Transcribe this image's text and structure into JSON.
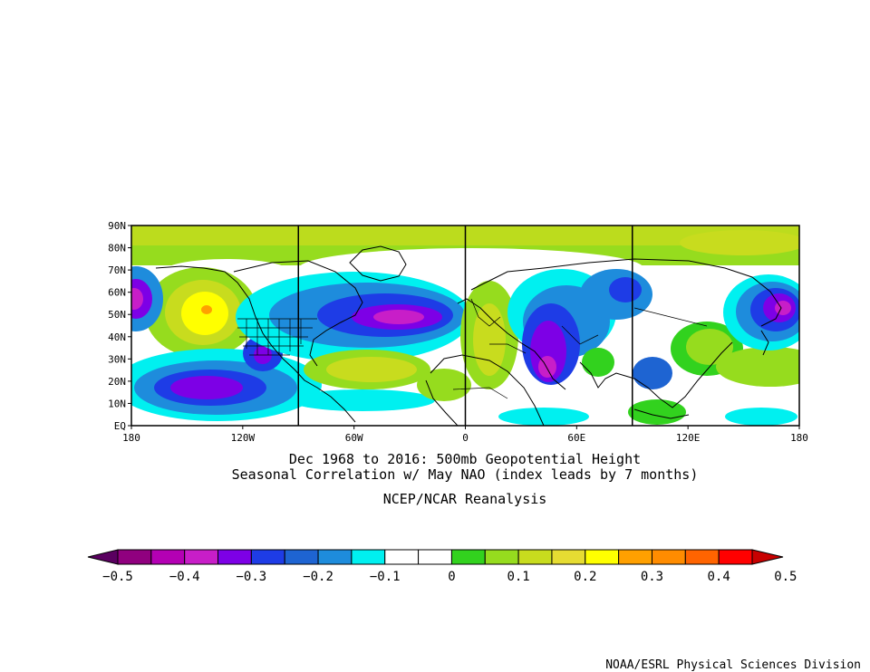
{
  "map": {
    "title_line1": "Dec 1968 to 2016: 500mb Geopotential Height",
    "title_line2": "Seasonal Correlation w/ May NAO (index leads by 7 months)",
    "source": "NCEP/NCAR Reanalysis",
    "credit": "NOAA/ESRL Physical Sciences Division",
    "lat_labels": [
      "90N",
      "80N",
      "70N",
      "60N",
      "50N",
      "40N",
      "30N",
      "20N",
      "10N",
      "EQ"
    ],
    "lon_labels": [
      {
        "label": "180",
        "lon": -180
      },
      {
        "label": "120W",
        "lon": -120
      },
      {
        "label": "60W",
        "lon": -60
      },
      {
        "label": "0",
        "lon": 0
      },
      {
        "label": "60E",
        "lon": 60
      },
      {
        "label": "120E",
        "lon": 120
      },
      {
        "label": "180",
        "lon": 180
      }
    ],
    "meridian_lines": [
      -90,
      0,
      90
    ]
  },
  "colorbar": {
    "colors": [
      "#5a0060",
      "#90007f",
      "#b400b4",
      "#c81ec8",
      "#7d00e6",
      "#1e3ce6",
      "#1e64d2",
      "#1e8cdc",
      "#00f0f0",
      "#ffffff",
      "#ffffff",
      "#32d21e",
      "#96dc1e",
      "#c8dc1e",
      "#e6dc32",
      "#ffff00",
      "#ffa000",
      "#ff8c00",
      "#ff6400",
      "#ff0000",
      "#c80000"
    ],
    "labels": [
      "−0.5",
      "−0.4",
      "−0.3",
      "−0.2",
      "−0.1",
      "0",
      "0.1",
      "0.2",
      "0.3",
      "0.4",
      "0.5"
    ]
  }
}
